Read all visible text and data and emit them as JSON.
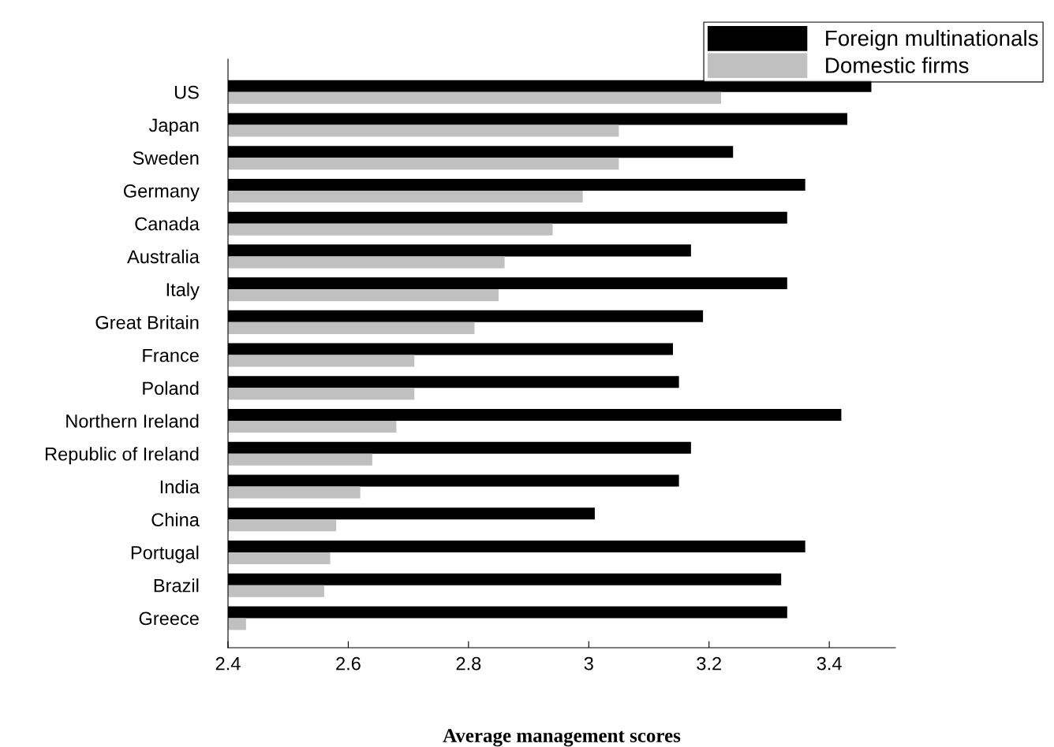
{
  "chart_data": {
    "type": "bar",
    "orientation": "horizontal",
    "xlabel": "Average management scores",
    "categories": [
      "US",
      "Japan",
      "Sweden",
      "Germany",
      "Canada",
      "Australia",
      "Italy",
      "Great Britain",
      "France",
      "Poland",
      "Northern Ireland",
      "Republic of Ireland",
      "India",
      "China",
      "Portugal",
      "Brazil",
      "Greece"
    ],
    "series": [
      {
        "name": "Foreign multinationals",
        "color": "#000000",
        "values": [
          3.47,
          3.43,
          3.24,
          3.36,
          3.33,
          3.17,
          3.33,
          3.19,
          3.14,
          3.15,
          3.42,
          3.17,
          3.15,
          3.01,
          3.36,
          3.32,
          3.33
        ]
      },
      {
        "name": "Domestic firms",
        "color": "#c0c0c0",
        "values": [
          3.22,
          3.05,
          3.05,
          2.99,
          2.94,
          2.86,
          2.85,
          2.81,
          2.71,
          2.71,
          2.68,
          2.64,
          2.62,
          2.58,
          2.57,
          2.56,
          2.43
        ]
      }
    ],
    "xlim": [
      2.4,
      3.51
    ],
    "xticks": [
      2.4,
      2.6,
      2.8,
      3,
      3.2,
      3.4
    ],
    "grid": false,
    "legend": "top right"
  }
}
